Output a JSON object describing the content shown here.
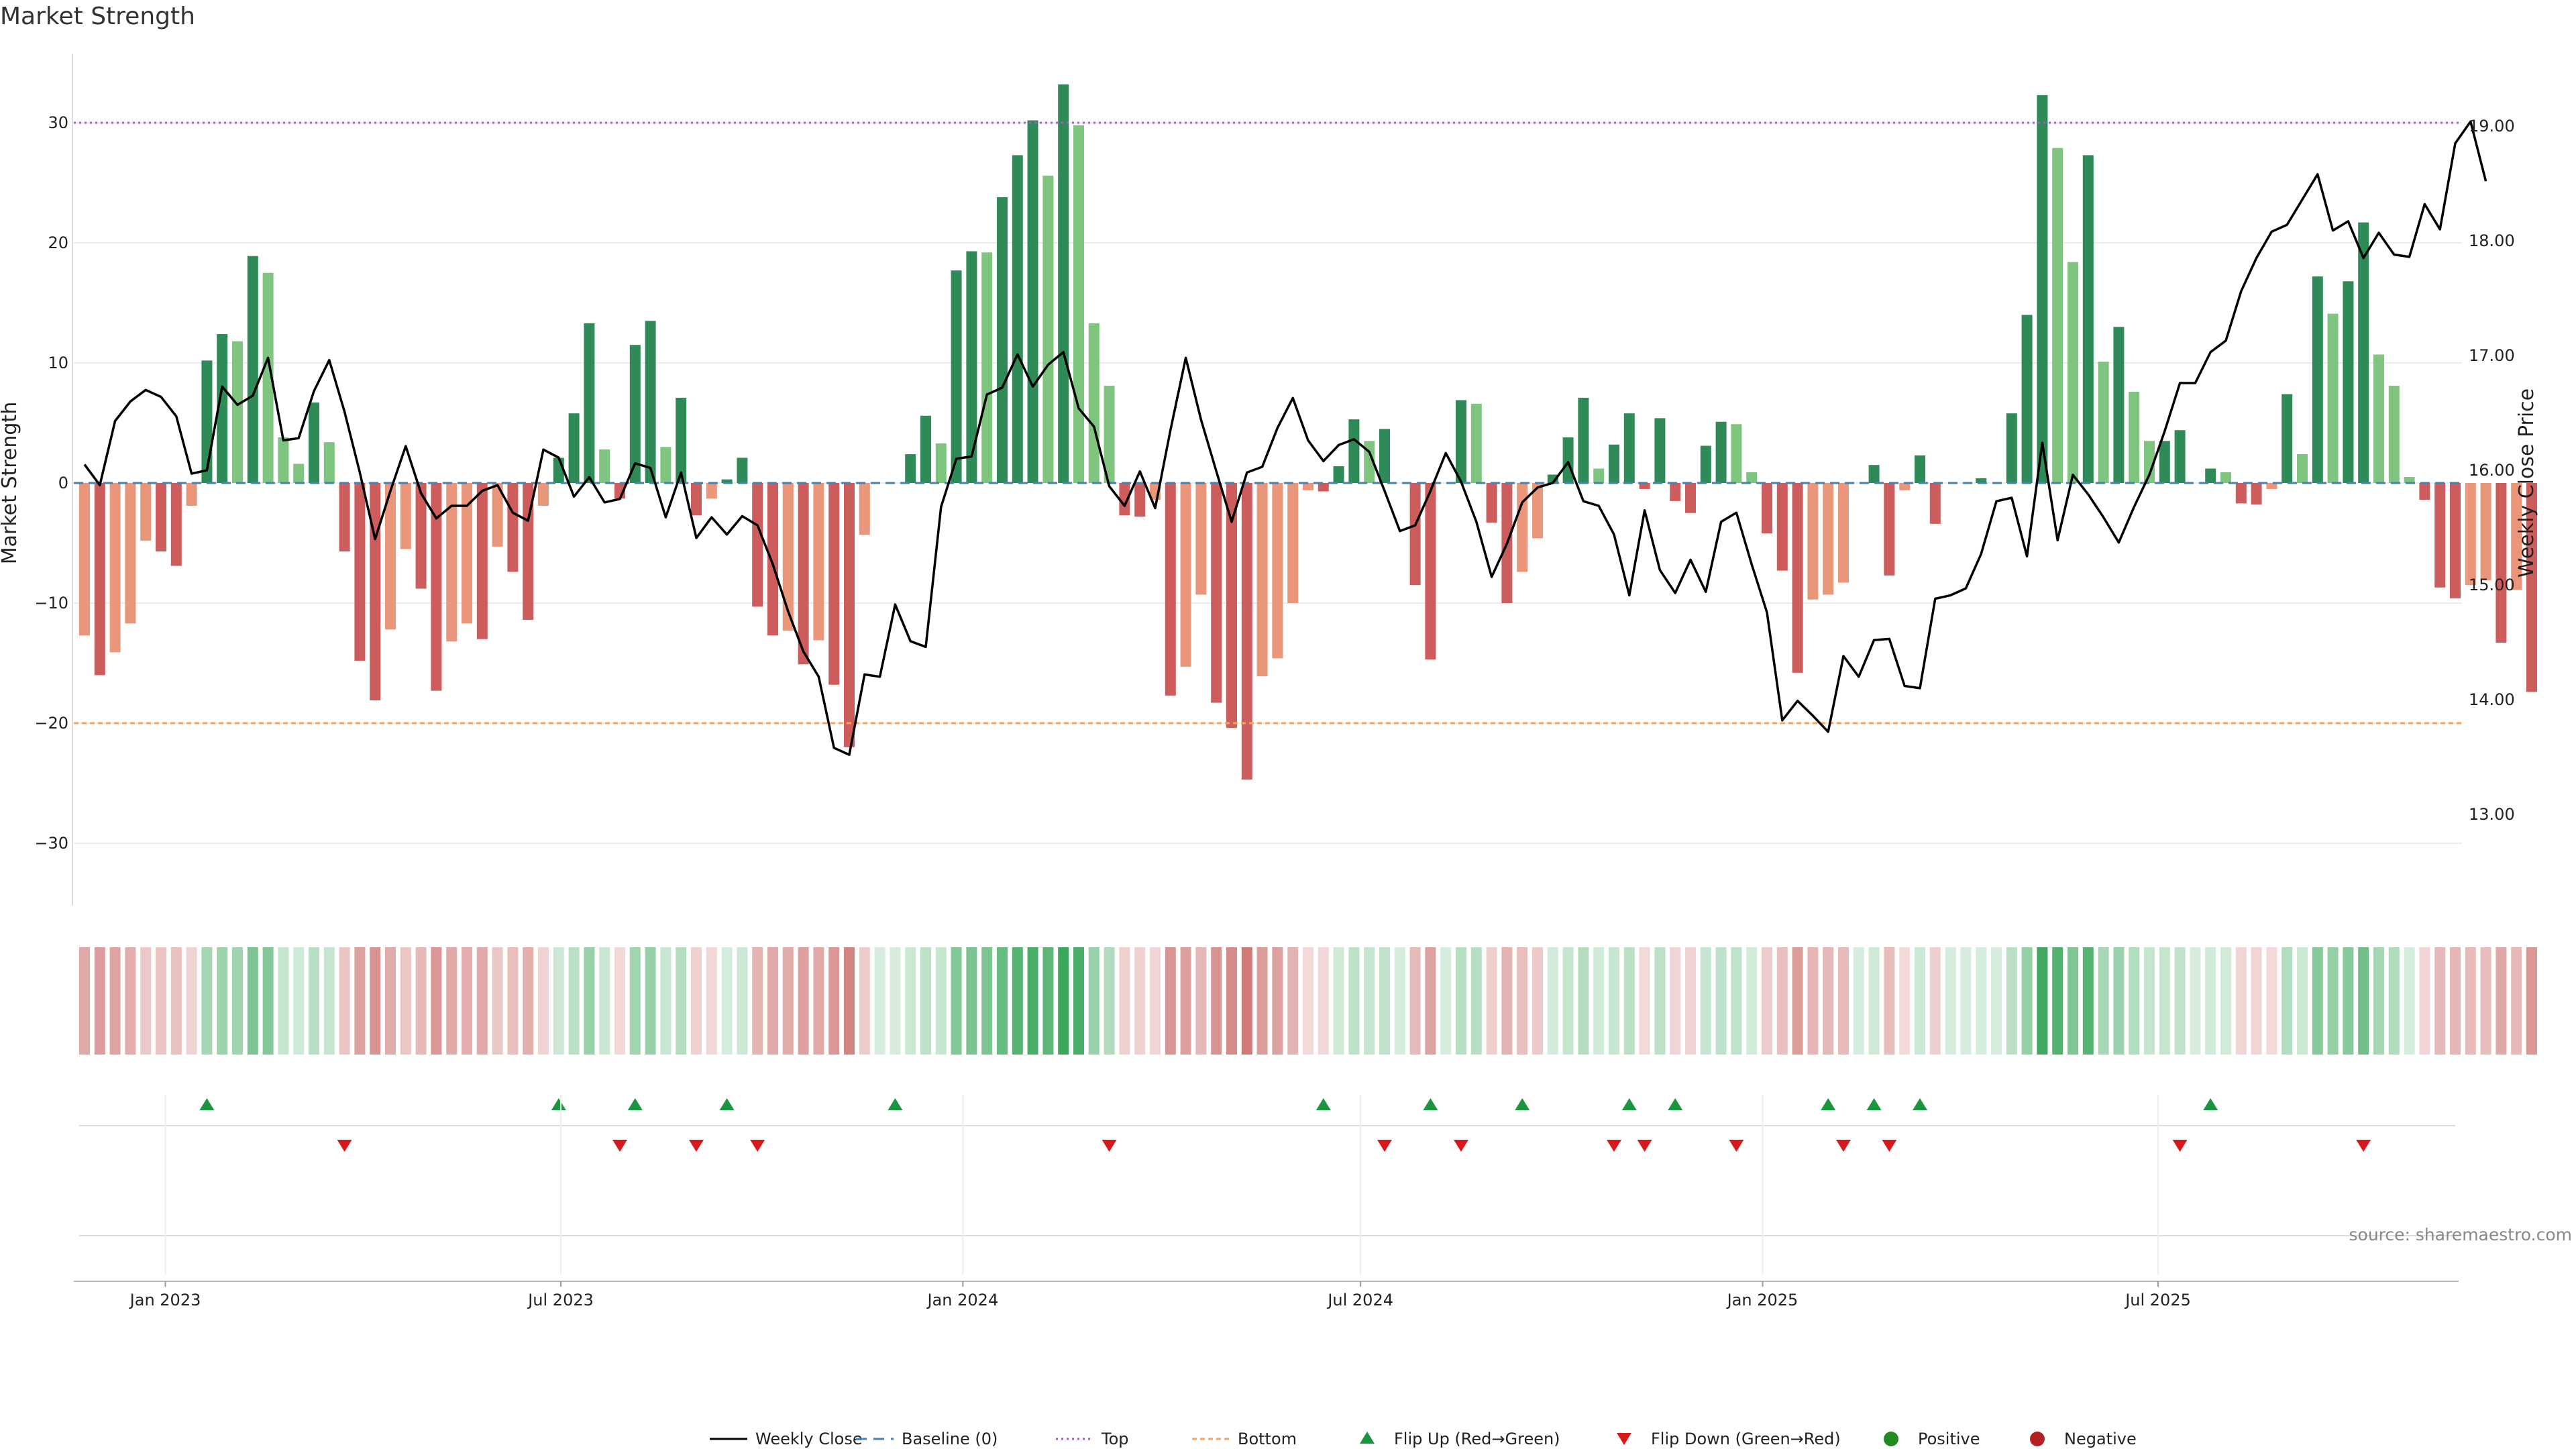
{
  "chart_data": {
    "type": "bar",
    "title": "Market Strength",
    "ylabel": "Market Strength",
    "ylabel_right": "Weekly Close Price",
    "ylim": [
      -36,
      36
    ],
    "ylim_right": [
      12.4,
      19.7
    ],
    "yticks": [
      -30,
      -20,
      -10,
      0,
      10,
      20,
      30
    ],
    "yticks_right": [
      "13.00",
      "14.00",
      "15.00",
      "16.00",
      "17.00",
      "18.00",
      "19.00"
    ],
    "top_level": 30,
    "bottom_level": -20,
    "baseline": 0,
    "x_start": "2022-11-25",
    "x_interval_days": 7,
    "xticks": [
      {
        "label": "Jan 2023",
        "date": "2023-01-01"
      },
      {
        "label": "Jul 2023",
        "date": "2023-07-01"
      },
      {
        "label": "Jan 2024",
        "date": "2024-01-01"
      },
      {
        "label": "Jul 2024",
        "date": "2024-07-01"
      },
      {
        "label": "Jan 2025",
        "date": "2025-01-01"
      },
      {
        "label": "Jul 2025",
        "date": "2025-07-01"
      }
    ],
    "grid": true,
    "strength": [
      -12.7,
      -16.0,
      -14.1,
      -11.7,
      -4.8,
      -5.7,
      -6.9,
      -1.9,
      10.2,
      12.4,
      11.8,
      18.9,
      17.5,
      3.8,
      1.6,
      6.7,
      3.4,
      -5.7,
      -14.8,
      -18.1,
      -12.2,
      -5.5,
      -8.8,
      -17.3,
      -13.2,
      -11.7,
      -13.0,
      -5.3,
      -7.4,
      -11.4,
      -1.9,
      2.1,
      5.8,
      13.3,
      2.8,
      -1.3,
      11.5,
      13.5,
      3.0,
      7.1,
      -2.7,
      -1.3,
      0.3,
      2.1,
      -10.3,
      -12.7,
      -12.3,
      -15.1,
      -13.1,
      -16.8,
      -22.0,
      -4.3,
      0.0,
      0.0,
      2.4,
      5.6,
      3.3,
      17.7,
      19.3,
      19.2,
      23.8,
      27.3,
      30.2,
      25.6,
      33.2,
      29.8,
      13.3,
      8.1,
      -2.7,
      -2.8,
      -1.4,
      -17.7,
      -15.3,
      -9.3,
      -18.3,
      -20.4,
      -24.7,
      -16.1,
      -14.6,
      -10.0,
      -0.6,
      -0.7,
      1.4,
      5.3,
      3.5,
      4.5,
      0.0,
      -8.5,
      -14.7,
      0.0,
      6.9,
      6.6,
      -3.3,
      -10.0,
      -7.4,
      -4.6,
      0.7,
      3.8,
      7.1,
      1.2,
      3.2,
      5.8,
      -0.5,
      5.4,
      -1.5,
      -2.5,
      3.1,
      5.1,
      4.9,
      0.9,
      -4.2,
      -7.3,
      -15.8,
      -9.7,
      -9.3,
      -8.3,
      0.0,
      1.5,
      -7.7,
      -0.6,
      2.3,
      -3.4,
      0.0,
      0.0,
      0.4,
      0.0,
      5.8,
      14.0,
      32.3,
      27.9,
      18.4,
      27.3,
      10.1,
      13.0,
      7.6,
      3.5,
      3.5,
      4.4,
      0.0,
      1.2,
      0.9,
      -1.7,
      -1.8,
      -0.5,
      7.4,
      2.4,
      17.2,
      14.1,
      16.8,
      21.7,
      10.7,
      8.1,
      0.5,
      -1.4,
      -8.7,
      -9.6,
      -8.5,
      -8.1,
      -13.3,
      -8.9,
      -17.4
    ],
    "close": [
      16.05,
      15.87,
      16.43,
      16.6,
      16.7,
      16.64,
      16.47,
      15.97,
      16.0,
      16.73,
      16.57,
      16.65,
      16.98,
      16.26,
      16.28,
      16.69,
      16.96,
      16.51,
      15.98,
      15.4,
      15.82,
      16.21,
      15.8,
      15.58,
      15.69,
      15.69,
      15.82,
      15.87,
      15.63,
      15.56,
      16.18,
      16.11,
      15.77,
      15.94,
      15.72,
      15.75,
      16.06,
      16.02,
      15.59,
      15.98,
      15.41,
      15.59,
      15.44,
      15.6,
      15.52,
      15.18,
      14.77,
      14.42,
      14.2,
      13.58,
      13.52,
      14.22,
      14.2,
      14.83,
      14.51,
      14.46,
      15.68,
      16.1,
      16.12,
      16.66,
      16.72,
      17.01,
      16.73,
      16.92,
      17.03,
      16.54,
      16.38,
      15.86,
      15.69,
      15.99,
      15.67,
      16.35,
      16.98,
      16.44,
      15.99,
      15.55,
      15.98,
      16.03,
      16.37,
      16.63,
      16.26,
      16.08,
      16.22,
      16.27,
      16.16,
      15.82,
      15.47,
      15.52,
      15.82,
      16.15,
      15.9,
      15.55,
      15.07,
      15.36,
      15.72,
      15.85,
      15.89,
      16.07,
      15.73,
      15.69,
      15.44,
      14.91,
      15.65,
      15.13,
      14.93,
      15.22,
      14.94,
      15.55,
      15.63,
      15.18,
      14.76,
      13.82,
      13.99,
      13.86,
      13.72,
      14.38,
      14.2,
      14.52,
      14.53,
      14.12,
      14.1,
      14.88,
      14.91,
      14.97,
      15.27,
      15.73,
      15.76,
      15.25,
      16.24,
      15.39,
      15.96,
      15.79,
      15.59,
      15.37,
      15.68,
      15.96,
      16.34,
      16.76,
      16.76,
      17.03,
      17.13,
      17.56,
      17.85,
      18.08,
      18.14,
      18.36,
      18.58,
      18.09,
      18.17,
      17.85,
      18.07,
      17.88,
      17.86,
      18.32,
      18.1,
      18.85,
      19.04,
      18.52
    ],
    "flip_up_indices": [
      8,
      31,
      36,
      42,
      53,
      81,
      88,
      94,
      101,
      104,
      114,
      117,
      120,
      139
    ],
    "flip_down_indices": [
      17,
      35,
      40,
      44,
      67,
      85,
      90,
      100,
      102,
      108,
      115,
      118,
      137,
      149
    ],
    "legend": [
      "Weekly Close",
      "Baseline (0)",
      "Top",
      "Bottom",
      "Flip Up (Red→Green)",
      "Flip Down (Green→Red)",
      "Positive",
      "Negative"
    ],
    "source": "source: sharemaestro.com"
  },
  "colors": {
    "strong_positive": "#2e8b57",
    "weak_positive": "#7fc47f",
    "strong_negative": "#cd5c5c",
    "weak_negative": "#e9967a",
    "close_line": "#000000",
    "top_line": "#9467bd",
    "bottom_line": "#f4a460",
    "baseline": "#4682b4",
    "flip_up": "#1a9641",
    "flip_down": "#d7191c",
    "positive_dot": "#228b22",
    "negative_dot": "#b22222",
    "grid": "#ebebeb"
  }
}
